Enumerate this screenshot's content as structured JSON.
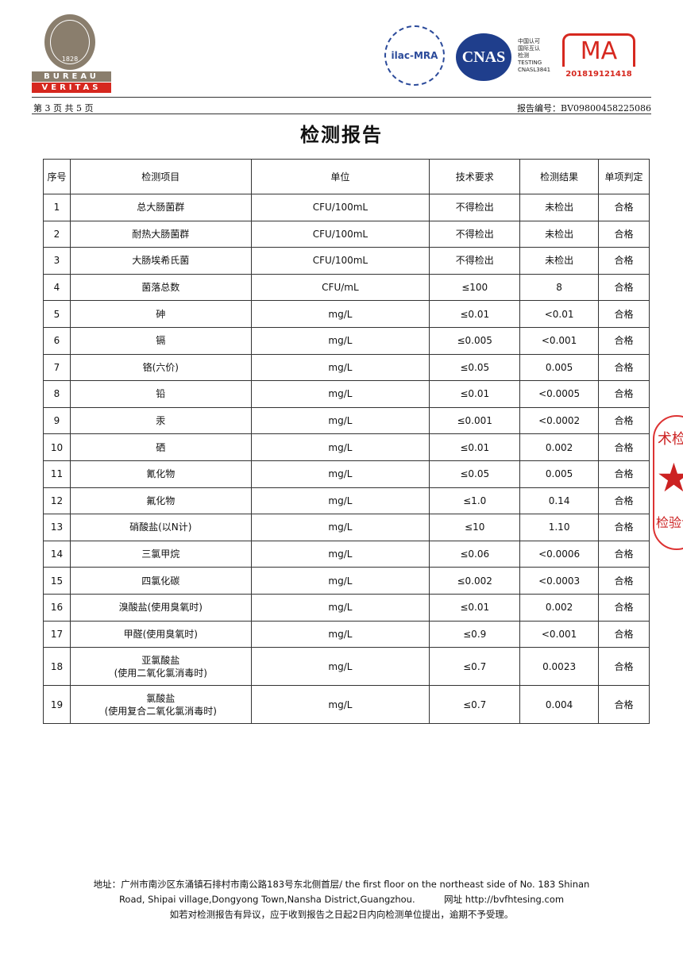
{
  "header": {
    "logo": {
      "brand_top": "BUREAU",
      "brand_bottom": "VERITAS",
      "year": "1828"
    },
    "accreditations": {
      "ilac": "ilac-MRA",
      "cnas": "CNAS",
      "cnas_lines": [
        "中国认可",
        "国际互认",
        "检测",
        "TESTING",
        "CNASL3841"
      ],
      "cma": "MA",
      "cma_number": "201819121418"
    },
    "page": "第 3 页 共 5 页",
    "report_no": "报告编号：BV09800458225086"
  },
  "title": "检测报告",
  "table": {
    "headers": [
      "序号",
      "检测项目",
      "单位",
      "技术要求",
      "检测结果",
      "单项判定"
    ],
    "rows": [
      [
        "1",
        "总大肠菌群",
        "CFU/100mL",
        "不得检出",
        "未检出",
        "合格"
      ],
      [
        "2",
        "耐热大肠菌群",
        "CFU/100mL",
        "不得检出",
        "未检出",
        "合格"
      ],
      [
        "3",
        "大肠埃希氏菌",
        "CFU/100mL",
        "不得检出",
        "未检出",
        "合格"
      ],
      [
        "4",
        "菌落总数",
        "CFU/mL",
        "≤100",
        "8",
        "合格"
      ],
      [
        "5",
        "砷",
        "mg/L",
        "≤0.01",
        "<0.01",
        "合格"
      ],
      [
        "6",
        "镉",
        "mg/L",
        "≤0.005",
        "<0.001",
        "合格"
      ],
      [
        "7",
        "铬(六价)",
        "mg/L",
        "≤0.05",
        "0.005",
        "合格"
      ],
      [
        "8",
        "铅",
        "mg/L",
        "≤0.01",
        "<0.0005",
        "合格"
      ],
      [
        "9",
        "汞",
        "mg/L",
        "≤0.001",
        "<0.0002",
        "合格"
      ],
      [
        "10",
        "硒",
        "mg/L",
        "≤0.01",
        "0.002",
        "合格"
      ],
      [
        "11",
        "氰化物",
        "mg/L",
        "≤0.05",
        "0.005",
        "合格"
      ],
      [
        "12",
        "氟化物",
        "mg/L",
        "≤1.0",
        "0.14",
        "合格"
      ],
      [
        "13",
        "硝酸盐(以N计)",
        "mg/L",
        "≤10",
        "1.10",
        "合格"
      ],
      [
        "14",
        "三氯甲烷",
        "mg/L",
        "≤0.06",
        "<0.0006",
        "合格"
      ],
      [
        "15",
        "四氯化碳",
        "mg/L",
        "≤0.002",
        "<0.0003",
        "合格"
      ],
      [
        "16",
        "溴酸盐(使用臭氧时)",
        "mg/L",
        "≤0.01",
        "0.002",
        "合格"
      ],
      [
        "17",
        "甲醛(使用臭氧时)",
        "mg/L",
        "≤0.9",
        "<0.001",
        "合格"
      ],
      [
        "18",
        "亚氯酸盐\n(使用二氧化氯消毒时)",
        "mg/L",
        "≤0.7",
        "0.0023",
        "合格"
      ],
      [
        "19",
        "氯酸盐\n(使用复合二氧化氯消毒时)",
        "mg/L",
        "≤0.7",
        "0.004",
        "合格"
      ]
    ]
  },
  "stamp": {
    "top": "术检",
    "bottom": "检验专"
  },
  "footer": {
    "line1": "地址：广州市南沙区东涌镇石排村市南公路183号东北侧首层/ the first floor on the northeast side of No. 183 Shinan",
    "line2": "Road, Shipai village,Dongyong Town,Nansha District,Guangzhou.          网址 http://bvfhtesing.com",
    "line3": "如若对检测报告有异议，应于收到报告之日起2日内向检测单位提出，逾期不予受理。"
  },
  "colors": {
    "bv_brown": "#8a7e6d",
    "bv_red": "#d6281f",
    "cnas_blue": "#1f3e8c",
    "stamp_red": "#cc2222"
  }
}
